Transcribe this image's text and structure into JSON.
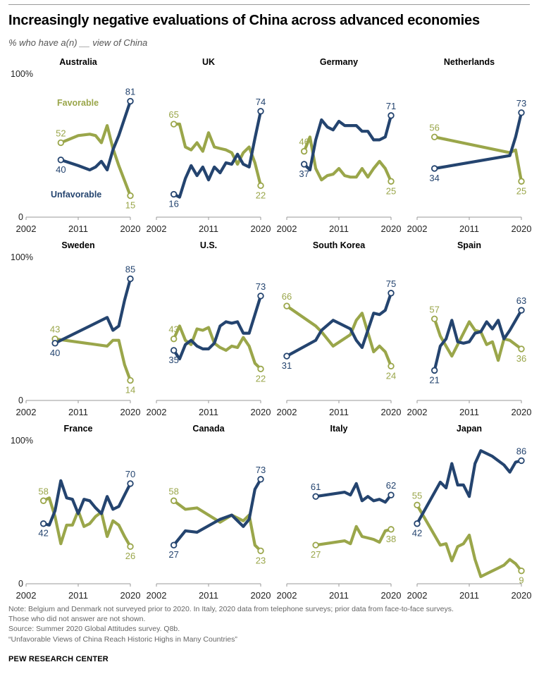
{
  "header": {
    "title": "Increasingly negative evaluations of China across advanced economies",
    "subtitle": "% who have a(n) __ view of China"
  },
  "footer": {
    "note1": "Note: Belgium and Denmark not surveyed prior to 2020. In Italy, 2020 data from telephone surveys; prior data from face-to-face surveys.",
    "note2": "Those who did not answer are not shown.",
    "source": "Source: Summer 2020 Global Attitudes survey. Q8b.",
    "report": "“Unfavorable Views of China Reach Historic Highs in Many Countries”",
    "brand": "PEW RESEARCH CENTER"
  },
  "colors": {
    "favorable": "#9aa64a",
    "unfavorable": "#24446f",
    "axis": "#9a9a9a"
  },
  "chart_data": {
    "type": "line",
    "series_labels": {
      "favorable": "Favorable",
      "unfavorable": "Unfavorable"
    },
    "y_axis": {
      "top_label": "100%",
      "bottom_label": "0",
      "ylim": [
        0,
        100
      ]
    },
    "x_axis": {
      "ticks": [
        "2002",
        "2011",
        "2020"
      ],
      "xlim": [
        2002,
        2020
      ]
    },
    "panels": [
      {
        "country": "Australia",
        "favorable": {
          "x": [
            2008,
            2011,
            2013,
            2014,
            2015,
            2016,
            2017,
            2018,
            2020
          ],
          "y": [
            52,
            57,
            58,
            57,
            52,
            64,
            48,
            36,
            15
          ]
        },
        "unfavorable": {
          "x": [
            2008,
            2011,
            2013,
            2014,
            2015,
            2016,
            2017,
            2018,
            2020
          ],
          "y": [
            40,
            36,
            33,
            35,
            39,
            33,
            47,
            57,
            81
          ]
        },
        "fav_first_label": "52",
        "fav_last_label": "15",
        "unfav_first_label": "40",
        "unfav_last_label": "81"
      },
      {
        "country": "UK",
        "favorable": {
          "x": [
            2005,
            2006,
            2007,
            2008,
            2009,
            2010,
            2011,
            2012,
            2013,
            2014,
            2015,
            2016,
            2017,
            2018,
            2019,
            2020
          ],
          "y": [
            65,
            65,
            49,
            47,
            52,
            46,
            59,
            49,
            48,
            47,
            45,
            37,
            45,
            49,
            38,
            22
          ]
        },
        "unfavorable": {
          "x": [
            2005,
            2006,
            2007,
            2008,
            2009,
            2010,
            2011,
            2012,
            2013,
            2014,
            2015,
            2016,
            2017,
            2018,
            2019,
            2020
          ],
          "y": [
            16,
            14,
            27,
            36,
            29,
            35,
            26,
            35,
            31,
            38,
            37,
            44,
            37,
            35,
            55,
            74
          ]
        },
        "fav_first_label": "65",
        "fav_last_label": "22",
        "unfav_first_label": "16",
        "unfav_last_label": "74"
      },
      {
        "country": "Germany",
        "favorable": {
          "x": [
            2005,
            2006,
            2007,
            2008,
            2009,
            2010,
            2011,
            2012,
            2013,
            2014,
            2015,
            2016,
            2017,
            2018,
            2019,
            2020
          ],
          "y": [
            46,
            56,
            34,
            26,
            29,
            30,
            34,
            29,
            28,
            28,
            34,
            28,
            34,
            39,
            34,
            25
          ]
        },
        "unfavorable": {
          "x": [
            2005,
            2006,
            2007,
            2008,
            2009,
            2010,
            2011,
            2012,
            2013,
            2014,
            2015,
            2016,
            2017,
            2018,
            2019,
            2020
          ],
          "y": [
            37,
            33,
            54,
            68,
            63,
            61,
            67,
            64,
            64,
            64,
            60,
            60,
            54,
            54,
            56,
            71
          ]
        },
        "fav_first_label": "46",
        "fav_last_label": "25",
        "unfav_first_label": "37",
        "unfav_last_label": "71"
      },
      {
        "country": "Netherlands",
        "favorable": {
          "x": [
            2005,
            2018,
            2019,
            2020
          ],
          "y": [
            56,
            45,
            47,
            25
          ]
        },
        "unfavorable": {
          "x": [
            2005,
            2018,
            2019,
            2020
          ],
          "y": [
            34,
            43,
            56,
            73
          ]
        },
        "fav_first_label": "56",
        "fav_last_label": "25",
        "unfav_first_label": "34",
        "unfav_last_label": "73"
      },
      {
        "country": "Sweden",
        "favorable": {
          "x": [
            2007,
            2016,
            2017,
            2018,
            2019,
            2020
          ],
          "y": [
            43,
            38,
            42,
            42,
            25,
            14
          ]
        },
        "unfavorable": {
          "x": [
            2007,
            2016,
            2017,
            2018,
            2019,
            2020
          ],
          "y": [
            40,
            58,
            49,
            52,
            70,
            85
          ]
        },
        "fav_first_label": "43",
        "fav_last_label": "14",
        "unfav_first_label": "40",
        "unfav_last_label": "85"
      },
      {
        "country": "U.S.",
        "favorable": {
          "x": [
            2005,
            2006,
            2007,
            2008,
            2009,
            2010,
            2011,
            2012,
            2013,
            2014,
            2015,
            2016,
            2017,
            2018,
            2019,
            2020
          ],
          "y": [
            43,
            52,
            42,
            39,
            50,
            49,
            51,
            40,
            37,
            35,
            38,
            37,
            44,
            38,
            26,
            22
          ]
        },
        "unfavorable": {
          "x": [
            2005,
            2006,
            2007,
            2008,
            2009,
            2010,
            2011,
            2012,
            2013,
            2014,
            2015,
            2016,
            2017,
            2018,
            2019,
            2020
          ],
          "y": [
            35,
            29,
            39,
            42,
            38,
            36,
            36,
            40,
            52,
            55,
            54,
            55,
            47,
            47,
            60,
            73
          ]
        },
        "fav_first_label": "43",
        "fav_last_label": "22",
        "unfav_first_label": "35",
        "unfav_last_label": "73"
      },
      {
        "country": "South Korea",
        "favorable": {
          "x": [
            2002,
            2007,
            2008,
            2010,
            2013,
            2014,
            2015,
            2017,
            2018,
            2019,
            2020
          ],
          "y": [
            66,
            52,
            48,
            38,
            46,
            56,
            61,
            34,
            38,
            34,
            24
          ]
        },
        "unfavorable": {
          "x": [
            2002,
            2007,
            2008,
            2010,
            2013,
            2014,
            2015,
            2017,
            2018,
            2019,
            2020
          ],
          "y": [
            31,
            42,
            49,
            56,
            50,
            42,
            37,
            61,
            60,
            63,
            75
          ]
        },
        "fav_first_label": "66",
        "fav_last_label": "24",
        "unfav_first_label": "31",
        "unfav_last_label": "75"
      },
      {
        "country": "Spain",
        "favorable": {
          "x": [
            2005,
            2006,
            2007,
            2008,
            2009,
            2010,
            2011,
            2012,
            2013,
            2014,
            2015,
            2016,
            2017,
            2018,
            2019,
            2020
          ],
          "y": [
            57,
            45,
            38,
            31,
            39,
            47,
            55,
            49,
            48,
            39,
            41,
            28,
            43,
            42,
            39,
            36
          ]
        },
        "unfavorable": {
          "x": [
            2005,
            2006,
            2007,
            2008,
            2009,
            2010,
            2011,
            2012,
            2013,
            2014,
            2015,
            2016,
            2017,
            2018,
            2019,
            2020
          ],
          "y": [
            21,
            38,
            43,
            56,
            41,
            40,
            41,
            47,
            48,
            55,
            50,
            56,
            43,
            49,
            56,
            63
          ]
        },
        "fav_first_label": "57",
        "fav_last_label": "36",
        "unfav_first_label": "21",
        "unfav_last_label": "63"
      },
      {
        "country": "France",
        "favorable": {
          "x": [
            2005,
            2006,
            2007,
            2008,
            2009,
            2010,
            2011,
            2012,
            2013,
            2014,
            2015,
            2016,
            2017,
            2018,
            2019,
            2020
          ],
          "y": [
            58,
            60,
            47,
            28,
            41,
            41,
            51,
            40,
            42,
            47,
            50,
            33,
            44,
            41,
            33,
            26
          ]
        },
        "unfavorable": {
          "x": [
            2005,
            2006,
            2007,
            2008,
            2009,
            2010,
            2011,
            2012,
            2013,
            2014,
            2015,
            2016,
            2017,
            2018,
            2019,
            2020
          ],
          "y": [
            42,
            41,
            51,
            72,
            60,
            59,
            49,
            59,
            58,
            53,
            49,
            61,
            52,
            54,
            62,
            70
          ]
        },
        "fav_first_label": "58",
        "fav_last_label": "26",
        "unfav_first_label": "42",
        "unfav_last_label": "70"
      },
      {
        "country": "Canada",
        "favorable": {
          "x": [
            2005,
            2007,
            2009,
            2013,
            2015,
            2017,
            2018,
            2019,
            2020
          ],
          "y": [
            58,
            52,
            53,
            43,
            48,
            44,
            48,
            27,
            23
          ]
        },
        "unfavorable": {
          "x": [
            2005,
            2007,
            2009,
            2013,
            2015,
            2017,
            2018,
            2019,
            2020
          ],
          "y": [
            27,
            37,
            36,
            45,
            48,
            40,
            45,
            66,
            73
          ]
        },
        "fav_first_label": "58",
        "fav_last_label": "23",
        "unfav_first_label": "27",
        "unfav_last_label": "73"
      },
      {
        "country": "Italy",
        "favorable": {
          "x": [
            2007,
            2012,
            2013,
            2014,
            2015,
            2016,
            2017,
            2018,
            2019,
            2020
          ],
          "y": [
            27,
            30,
            28,
            40,
            33,
            32,
            31,
            29,
            37,
            38
          ]
        },
        "unfavorable": {
          "x": [
            2007,
            2012,
            2013,
            2014,
            2015,
            2016,
            2017,
            2018,
            2019,
            2020
          ],
          "y": [
            61,
            64,
            62,
            70,
            58,
            61,
            58,
            59,
            57,
            62
          ]
        },
        "fav_first_label": "27",
        "fav_last_label": "38",
        "unfav_first_label": "61",
        "unfav_last_label": "62"
      },
      {
        "country": "Japan",
        "favorable": {
          "x": [
            2002,
            2006,
            2007,
            2008,
            2009,
            2010,
            2011,
            2012,
            2013,
            2014,
            2015,
            2016,
            2017,
            2018,
            2019,
            2020
          ],
          "y": [
            55,
            27,
            28,
            16,
            26,
            28,
            34,
            17,
            5,
            7,
            9,
            11,
            13,
            17,
            14,
            9
          ]
        },
        "unfavorable": {
          "x": [
            2002,
            2006,
            2007,
            2008,
            2009,
            2010,
            2011,
            2012,
            2013,
            2014,
            2015,
            2016,
            2017,
            2018,
            2019,
            2020
          ],
          "y": [
            42,
            71,
            67,
            84,
            69,
            69,
            61,
            84,
            93,
            91,
            89,
            86,
            83,
            78,
            85,
            86
          ]
        },
        "fav_first_label": "55",
        "fav_last_label": "9",
        "unfav_first_label": "42",
        "unfav_last_label": "86"
      }
    ]
  }
}
